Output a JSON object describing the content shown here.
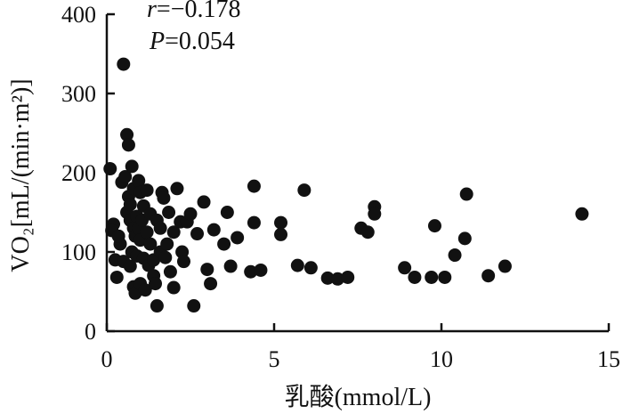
{
  "chart_data": {
    "type": "scatter",
    "xlabel": "乳酸(mmol/L)",
    "ylabel": "VO₂[mL/(min·m²)]",
    "xlim": [
      0,
      15
    ],
    "ylim": [
      0,
      400
    ],
    "xticks": [
      "0",
      "5",
      "10",
      "15"
    ],
    "yticks": [
      "0",
      "100",
      "200",
      "300",
      "400"
    ],
    "grid": false,
    "annotations": {
      "r_label": "r",
      "r_value": "=−0.178",
      "p_label": "P",
      "p_value": "=0.054"
    },
    "series": [
      {
        "points": [
          [
            0.1,
            205
          ],
          [
            0.2,
            135
          ],
          [
            0.15,
            127
          ],
          [
            0.25,
            90
          ],
          [
            0.3,
            68
          ],
          [
            0.4,
            110
          ],
          [
            0.35,
            120
          ],
          [
            0.5,
            88
          ],
          [
            0.45,
            188
          ],
          [
            0.5,
            337
          ],
          [
            0.55,
            195
          ],
          [
            0.6,
            150
          ],
          [
            0.6,
            248
          ],
          [
            0.65,
            235
          ],
          [
            0.65,
            170
          ],
          [
            0.7,
            140
          ],
          [
            0.7,
            82
          ],
          [
            0.7,
            160
          ],
          [
            0.75,
            208
          ],
          [
            0.75,
            100
          ],
          [
            0.8,
            180
          ],
          [
            0.8,
            130
          ],
          [
            0.8,
            56
          ],
          [
            0.85,
            120
          ],
          [
            0.85,
            48
          ],
          [
            0.9,
            145
          ],
          [
            0.9,
            95
          ],
          [
            0.95,
            190
          ],
          [
            0.95,
            130
          ],
          [
            1.0,
            175
          ],
          [
            1.0,
            115
          ],
          [
            1.0,
            60
          ],
          [
            1.05,
            140
          ],
          [
            1.1,
            92
          ],
          [
            1.1,
            158
          ],
          [
            1.15,
            52
          ],
          [
            1.2,
            178
          ],
          [
            1.2,
            125
          ],
          [
            1.25,
            83
          ],
          [
            1.3,
            148
          ],
          [
            1.3,
            110
          ],
          [
            1.4,
            90
          ],
          [
            1.4,
            70
          ],
          [
            1.45,
            60
          ],
          [
            1.5,
            140
          ],
          [
            1.5,
            32
          ],
          [
            1.6,
            130
          ],
          [
            1.6,
            100
          ],
          [
            1.65,
            175
          ],
          [
            1.7,
            168
          ],
          [
            1.75,
            93
          ],
          [
            1.8,
            110
          ],
          [
            1.85,
            150
          ],
          [
            1.9,
            75
          ],
          [
            2.0,
            125
          ],
          [
            2.0,
            55
          ],
          [
            2.1,
            180
          ],
          [
            2.2,
            138
          ],
          [
            2.25,
            100
          ],
          [
            2.3,
            88
          ],
          [
            2.4,
            138
          ],
          [
            2.5,
            148
          ],
          [
            2.6,
            32
          ],
          [
            2.7,
            123
          ],
          [
            2.9,
            163
          ],
          [
            3.0,
            78
          ],
          [
            3.1,
            60
          ],
          [
            3.2,
            128
          ],
          [
            3.5,
            110
          ],
          [
            3.6,
            150
          ],
          [
            3.7,
            82
          ],
          [
            3.9,
            118
          ],
          [
            4.3,
            75
          ],
          [
            4.4,
            183
          ],
          [
            4.4,
            137
          ],
          [
            4.6,
            77
          ],
          [
            5.2,
            137
          ],
          [
            5.2,
            122
          ],
          [
            5.7,
            83
          ],
          [
            5.9,
            178
          ],
          [
            6.1,
            80
          ],
          [
            6.6,
            67
          ],
          [
            6.9,
            66
          ],
          [
            7.2,
            68
          ],
          [
            7.6,
            130
          ],
          [
            7.8,
            125
          ],
          [
            8.0,
            157
          ],
          [
            8.0,
            148
          ],
          [
            8.9,
            80
          ],
          [
            9.2,
            68
          ],
          [
            9.7,
            68
          ],
          [
            9.8,
            133
          ],
          [
            10.1,
            68
          ],
          [
            10.4,
            96
          ],
          [
            10.7,
            117
          ],
          [
            10.75,
            173
          ],
          [
            11.4,
            70
          ],
          [
            11.9,
            82
          ],
          [
            14.2,
            148
          ]
        ]
      }
    ]
  }
}
